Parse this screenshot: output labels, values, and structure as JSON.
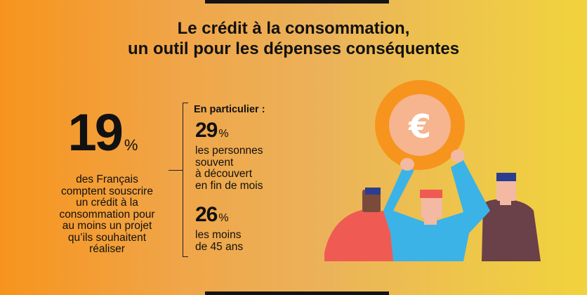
{
  "title": {
    "line1": "Le crédit à la consommation,",
    "line2": "un outil pour les dépenses conséquentes"
  },
  "main_stat": {
    "number": "19",
    "unit": "%",
    "description": [
      "des Français",
      "comptent souscrire",
      "un crédit à la",
      "consommation pour",
      "au moins un projet",
      "qu’ils souhaitent",
      "réaliser"
    ]
  },
  "side": {
    "heading": "En particulier :",
    "stats": [
      {
        "number": "29",
        "unit": "%",
        "description": [
          "les personnes",
          "souvent",
          "à découvert",
          "en fin de mois"
        ]
      },
      {
        "number": "26",
        "unit": "%",
        "description": [
          "les moins",
          "de 45 ans"
        ]
      }
    ]
  },
  "illustration": {
    "coin_symbol": "€",
    "colors": {
      "coin_outer": "#f7941d",
      "coin_inner": "#f6b48f",
      "shirt_left": "#ef5b52",
      "shirt_middle": "#3bb3e6",
      "shirt_right": "#6a4049",
      "hair_left": "#2b3d8f",
      "hair_middle": "#ef5b52",
      "hair_right": "#2b3d8f",
      "skin": "#f3b9a3",
      "skin_dark": "#7a4a3a"
    }
  }
}
